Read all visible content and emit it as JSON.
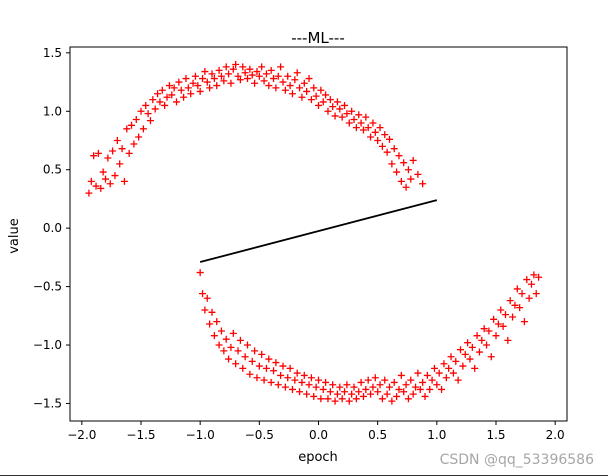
{
  "chart_data": {
    "type": "scatter",
    "title": "---ML---",
    "xlabel": "epoch",
    "ylabel": "value",
    "xlim": [
      -2.1,
      2.1
    ],
    "ylim": [
      -1.65,
      1.55
    ],
    "xticks": [
      -2.0,
      -1.5,
      -1.0,
      -0.5,
      0.0,
      0.5,
      1.0,
      1.5,
      2.0
    ],
    "xtick_labels": [
      "−2.0",
      "−1.5",
      "−1.0",
      "−0.5",
      "0.0",
      "0.5",
      "1.0",
      "1.5",
      "2.0"
    ],
    "yticks": [
      -1.5,
      -1.0,
      -0.5,
      0.0,
      0.5,
      1.0,
      1.5
    ],
    "ytick_labels": [
      "−1.5",
      "−1.0",
      "−0.5",
      "0.0",
      "0.5",
      "1.0",
      "1.5"
    ],
    "grid": false,
    "series": [
      {
        "marker": "+",
        "color": "#ff0000",
        "points": [
          [
            -1.94,
            0.3
          ],
          [
            -1.92,
            0.4
          ],
          [
            -1.9,
            0.62
          ],
          [
            -1.88,
            0.36
          ],
          [
            -1.86,
            0.64
          ],
          [
            -1.84,
            0.34
          ],
          [
            -1.82,
            0.48
          ],
          [
            -1.8,
            0.42
          ],
          [
            -1.78,
            0.6
          ],
          [
            -1.76,
            0.38
          ],
          [
            -1.74,
            0.66
          ],
          [
            -1.72,
            0.45
          ],
          [
            -1.7,
            0.75
          ],
          [
            -1.68,
            0.55
          ],
          [
            -1.66,
            0.68
          ],
          [
            -1.64,
            0.4
          ],
          [
            -1.62,
            0.85
          ],
          [
            -1.6,
            0.64
          ],
          [
            -1.58,
            0.88
          ],
          [
            -1.56,
            0.72
          ],
          [
            -1.54,
            0.93
          ],
          [
            -1.52,
            0.78
          ],
          [
            -1.5,
            1.0
          ],
          [
            -1.48,
            0.85
          ],
          [
            -1.46,
            1.05
          ],
          [
            -1.44,
            0.98
          ],
          [
            -1.42,
            0.92
          ],
          [
            -1.4,
            1.1
          ],
          [
            -1.38,
            1.02
          ],
          [
            -1.36,
            1.15
          ],
          [
            -1.34,
            1.08
          ],
          [
            -1.32,
            1.18
          ],
          [
            -1.3,
            1.05
          ],
          [
            -1.28,
            1.12
          ],
          [
            -1.26,
            1.22
          ],
          [
            -1.24,
            1.14
          ],
          [
            -1.22,
            1.2
          ],
          [
            -1.2,
            1.08
          ],
          [
            -1.18,
            1.25
          ],
          [
            -1.16,
            1.18
          ],
          [
            -1.14,
            1.12
          ],
          [
            -1.12,
            1.28
          ],
          [
            -1.1,
            1.2
          ],
          [
            -1.08,
            1.15
          ],
          [
            -1.06,
            1.24
          ],
          [
            -1.04,
            1.3
          ],
          [
            -1.02,
            1.22
          ],
          [
            -1.0,
            1.17
          ],
          [
            -0.98,
            1.28
          ],
          [
            -0.96,
            1.34
          ],
          [
            -0.94,
            1.25
          ],
          [
            -0.92,
            1.2
          ],
          [
            -0.9,
            1.32
          ],
          [
            -0.88,
            1.28
          ],
          [
            -0.86,
            1.22
          ],
          [
            -0.84,
            1.35
          ],
          [
            -0.82,
            1.3
          ],
          [
            -0.8,
            1.26
          ],
          [
            -0.78,
            1.38
          ],
          [
            -0.76,
            1.32
          ],
          [
            -0.74,
            1.24
          ],
          [
            -0.72,
            1.36
          ],
          [
            -0.7,
            1.4
          ],
          [
            -0.68,
            1.3
          ],
          [
            -0.66,
            1.27
          ],
          [
            -0.64,
            1.38
          ],
          [
            -0.62,
            1.33
          ],
          [
            -0.6,
            1.28
          ],
          [
            -0.58,
            1.36
          ],
          [
            -0.56,
            1.31
          ],
          [
            -0.54,
            1.24
          ],
          [
            -0.52,
            1.34
          ],
          [
            -0.5,
            1.3
          ],
          [
            -0.48,
            1.38
          ],
          [
            -0.46,
            1.26
          ],
          [
            -0.44,
            1.32
          ],
          [
            -0.42,
            1.22
          ],
          [
            -0.4,
            1.35
          ],
          [
            -0.38,
            1.28
          ],
          [
            -0.36,
            1.2
          ],
          [
            -0.34,
            1.3
          ],
          [
            -0.32,
            1.38
          ],
          [
            -0.3,
            1.25
          ],
          [
            -0.28,
            1.18
          ],
          [
            -0.26,
            1.3
          ],
          [
            -0.24,
            1.22
          ],
          [
            -0.22,
            1.15
          ],
          [
            -0.2,
            1.27
          ],
          [
            -0.18,
            1.33
          ],
          [
            -0.16,
            1.2
          ],
          [
            -0.14,
            1.12
          ],
          [
            -0.12,
            1.24
          ],
          [
            -0.1,
            1.17
          ],
          [
            -0.08,
            1.28
          ],
          [
            -0.06,
            1.1
          ],
          [
            -0.04,
            1.2
          ],
          [
            -0.02,
            1.13
          ],
          [
            0.0,
            1.05
          ],
          [
            0.02,
            1.18
          ],
          [
            0.04,
            1.08
          ],
          [
            0.06,
            1.14
          ],
          [
            0.08,
            1.0
          ],
          [
            0.1,
            1.1
          ],
          [
            0.12,
            1.04
          ],
          [
            0.14,
            0.96
          ],
          [
            0.16,
            1.08
          ],
          [
            0.18,
            1.02
          ],
          [
            0.2,
            0.95
          ],
          [
            0.22,
            1.05
          ],
          [
            0.24,
            0.98
          ],
          [
            0.26,
            0.9
          ],
          [
            0.28,
            1.0
          ],
          [
            0.3,
            0.93
          ],
          [
            0.32,
            0.86
          ],
          [
            0.34,
            0.97
          ],
          [
            0.36,
            0.9
          ],
          [
            0.38,
            0.84
          ],
          [
            0.4,
            0.95
          ],
          [
            0.42,
            0.86
          ],
          [
            0.44,
            0.78
          ],
          [
            0.46,
            0.9
          ],
          [
            0.48,
            0.82
          ],
          [
            0.5,
            0.75
          ],
          [
            0.52,
            0.86
          ],
          [
            0.54,
            0.7
          ],
          [
            0.56,
            0.8
          ],
          [
            0.58,
            0.65
          ],
          [
            0.6,
            0.76
          ],
          [
            0.62,
            0.55
          ],
          [
            0.64,
            0.68
          ],
          [
            0.66,
            0.48
          ],
          [
            0.68,
            0.62
          ],
          [
            0.7,
            0.4
          ],
          [
            0.72,
            0.56
          ],
          [
            0.74,
            0.35
          ],
          [
            0.76,
            0.5
          ],
          [
            0.78,
            0.42
          ],
          [
            0.8,
            0.58
          ],
          [
            0.84,
            0.46
          ],
          [
            0.88,
            0.38
          ],
          [
            -1.0,
            -0.38
          ],
          [
            -0.98,
            -0.56
          ],
          [
            -0.96,
            -0.7
          ],
          [
            -0.94,
            -0.6
          ],
          [
            -0.92,
            -0.82
          ],
          [
            -0.9,
            -0.72
          ],
          [
            -0.88,
            -0.92
          ],
          [
            -0.86,
            -0.8
          ],
          [
            -0.84,
            -1.0
          ],
          [
            -0.82,
            -0.88
          ],
          [
            -0.8,
            -1.05
          ],
          [
            -0.78,
            -0.95
          ],
          [
            -0.76,
            -1.12
          ],
          [
            -0.74,
            -1.02
          ],
          [
            -0.72,
            -0.9
          ],
          [
            -0.7,
            -1.16
          ],
          [
            -0.68,
            -1.05
          ],
          [
            -0.66,
            -0.96
          ],
          [
            -0.64,
            -1.2
          ],
          [
            -0.62,
            -1.1
          ],
          [
            -0.6,
            -1.0
          ],
          [
            -0.58,
            -1.25
          ],
          [
            -0.56,
            -1.14
          ],
          [
            -0.54,
            -1.05
          ],
          [
            -0.52,
            -1.28
          ],
          [
            -0.5,
            -1.18
          ],
          [
            -0.48,
            -1.08
          ],
          [
            -0.46,
            -1.3
          ],
          [
            -0.44,
            -1.2
          ],
          [
            -0.42,
            -1.12
          ],
          [
            -0.4,
            -1.32
          ],
          [
            -0.38,
            -1.22
          ],
          [
            -0.36,
            -1.15
          ],
          [
            -0.34,
            -1.34
          ],
          [
            -0.32,
            -1.26
          ],
          [
            -0.3,
            -1.18
          ],
          [
            -0.28,
            -1.36
          ],
          [
            -0.26,
            -1.28
          ],
          [
            -0.24,
            -1.2
          ],
          [
            -0.22,
            -1.38
          ],
          [
            -0.2,
            -1.3
          ],
          [
            -0.18,
            -1.24
          ],
          [
            -0.16,
            -1.4
          ],
          [
            -0.14,
            -1.32
          ],
          [
            -0.12,
            -1.26
          ],
          [
            -0.1,
            -1.42
          ],
          [
            -0.08,
            -1.34
          ],
          [
            -0.06,
            -1.28
          ],
          [
            -0.04,
            -1.44
          ],
          [
            -0.02,
            -1.36
          ],
          [
            0.0,
            -1.3
          ],
          [
            0.02,
            -1.46
          ],
          [
            0.04,
            -1.38
          ],
          [
            0.06,
            -1.32
          ],
          [
            0.08,
            -1.46
          ],
          [
            0.1,
            -1.4
          ],
          [
            0.12,
            -1.34
          ],
          [
            0.14,
            -1.48
          ],
          [
            0.16,
            -1.42
          ],
          [
            0.18,
            -1.36
          ],
          [
            0.2,
            -1.46
          ],
          [
            0.22,
            -1.4
          ],
          [
            0.24,
            -1.34
          ],
          [
            0.26,
            -1.48
          ],
          [
            0.28,
            -1.42
          ],
          [
            0.3,
            -1.36
          ],
          [
            0.32,
            -1.46
          ],
          [
            0.34,
            -1.4
          ],
          [
            0.36,
            -1.32
          ],
          [
            0.38,
            -1.44
          ],
          [
            0.4,
            -1.38
          ],
          [
            0.42,
            -1.3
          ],
          [
            0.44,
            -1.42
          ],
          [
            0.46,
            -1.36
          ],
          [
            0.48,
            -1.28
          ],
          [
            0.5,
            -1.4
          ],
          [
            0.52,
            -1.34
          ],
          [
            0.54,
            -1.46
          ],
          [
            0.56,
            -1.3
          ],
          [
            0.58,
            -1.42
          ],
          [
            0.6,
            -1.36
          ],
          [
            0.62,
            -1.48
          ],
          [
            0.64,
            -1.32
          ],
          [
            0.66,
            -1.44
          ],
          [
            0.68,
            -1.38
          ],
          [
            0.7,
            -1.26
          ],
          [
            0.72,
            -1.4
          ],
          [
            0.74,
            -1.34
          ],
          [
            0.76,
            -1.46
          ],
          [
            0.78,
            -1.3
          ],
          [
            0.8,
            -1.42
          ],
          [
            0.82,
            -1.36
          ],
          [
            0.84,
            -1.24
          ],
          [
            0.86,
            -1.38
          ],
          [
            0.88,
            -1.32
          ],
          [
            0.9,
            -1.44
          ],
          [
            0.92,
            -1.26
          ],
          [
            0.94,
            -1.38
          ],
          [
            0.96,
            -1.3
          ],
          [
            0.98,
            -1.2
          ],
          [
            1.0,
            -1.34
          ],
          [
            1.02,
            -1.24
          ],
          [
            1.04,
            -1.38
          ],
          [
            1.06,
            -1.16
          ],
          [
            1.08,
            -1.28
          ],
          [
            1.1,
            -1.2
          ],
          [
            1.12,
            -1.1
          ],
          [
            1.14,
            -1.24
          ],
          [
            1.16,
            -1.14
          ],
          [
            1.18,
            -1.3
          ],
          [
            1.2,
            -1.04
          ],
          [
            1.22,
            -1.18
          ],
          [
            1.24,
            -1.08
          ],
          [
            1.26,
            -0.98
          ],
          [
            1.28,
            -1.12
          ],
          [
            1.3,
            -1.02
          ],
          [
            1.32,
            -1.2
          ],
          [
            1.34,
            -0.92
          ],
          [
            1.36,
            -1.06
          ],
          [
            1.38,
            -0.96
          ],
          [
            1.4,
            -0.86
          ],
          [
            1.42,
            -1.0
          ],
          [
            1.44,
            -0.88
          ],
          [
            1.46,
            -1.1
          ],
          [
            1.48,
            -0.78
          ],
          [
            1.5,
            -0.92
          ],
          [
            1.52,
            -0.82
          ],
          [
            1.54,
            -0.7
          ],
          [
            1.56,
            -0.84
          ],
          [
            1.58,
            -0.74
          ],
          [
            1.6,
            -0.96
          ],
          [
            1.62,
            -0.62
          ],
          [
            1.64,
            -0.76
          ],
          [
            1.66,
            -0.66
          ],
          [
            1.68,
            -0.52
          ],
          [
            1.7,
            -0.68
          ],
          [
            1.72,
            -0.56
          ],
          [
            1.74,
            -0.8
          ],
          [
            1.76,
            -0.44
          ],
          [
            1.78,
            -0.6
          ],
          [
            1.8,
            -0.48
          ],
          [
            1.82,
            -0.4
          ],
          [
            1.84,
            -0.56
          ],
          [
            1.86,
            -0.42
          ]
        ]
      },
      {
        "type": "line",
        "color": "#000000",
        "points": [
          [
            -1.0,
            -0.29
          ],
          [
            1.0,
            0.24
          ]
        ]
      }
    ]
  },
  "watermark": "CSDN @qq_53396586"
}
